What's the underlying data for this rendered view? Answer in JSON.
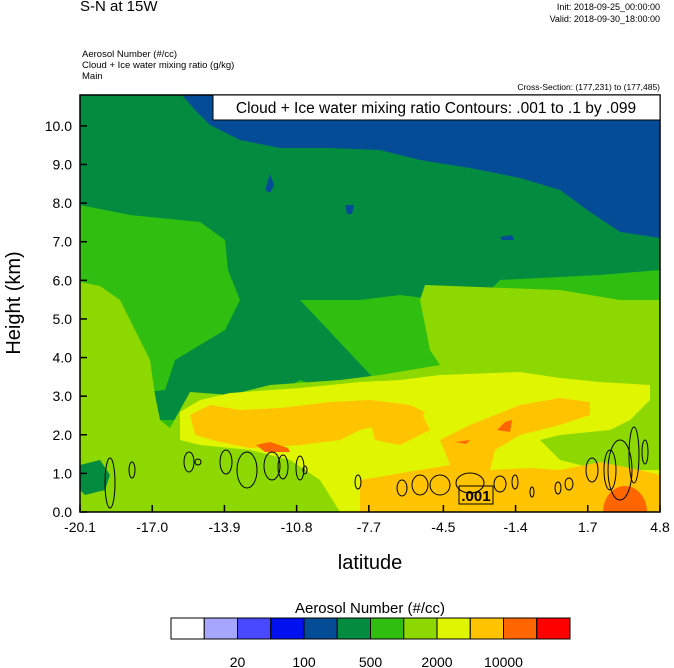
{
  "header": {
    "title": "S-N at 15W",
    "init": "Init: 2018-09-25_00:00:00",
    "valid": "Valid: 2018-09-30_18:00:00",
    "subtitles": [
      "Aerosol Number   (#/cc)",
      "Cloud + Ice water mixing ratio   (g/kg)",
      "Main"
    ],
    "cross_section": "Cross-Section: (177,231) to (177,485)"
  },
  "chart_data": {
    "type": "heatmap",
    "title": "Cloud + Ice water mixing ratio Contours: .001 to .1 by .099",
    "xlabel": "latitude",
    "ylabel": "Height (km)",
    "xlim": [
      -20.1,
      4.8
    ],
    "ylim": [
      0,
      10.8
    ],
    "x_ticks": [
      -20.1,
      -17.0,
      -13.9,
      -10.8,
      -7.7,
      -4.5,
      -1.4,
      1.7,
      4.8
    ],
    "x_tick_labels": [
      "-20.1",
      "-17.0",
      "-13.9",
      "-10.8",
      "-7.7",
      "-4.5",
      "-1.4",
      "1.7",
      "4.8"
    ],
    "y_ticks": [
      0,
      1,
      2,
      3,
      4,
      5,
      6,
      7,
      8,
      9,
      10
    ],
    "y_tick_labels": [
      "0.0",
      "1.0",
      "2.0",
      "3.0",
      "4.0",
      "5.0",
      "6.0",
      "7.0",
      "8.0",
      "9.0",
      "10.0"
    ],
    "contour_label": ".001",
    "colorbar": {
      "title": "Aerosol Number  (#/cc)",
      "colors": [
        "#ffffff",
        "#a6a6ff",
        "#4848ff",
        "#0010ee",
        "#044c96",
        "#038c40",
        "#30be10",
        "#8cd800",
        "#e0f500",
        "#ffc300",
        "#ff6600",
        "#ff0000"
      ],
      "labels": [
        "20",
        "100",
        "500",
        "2000",
        "10000"
      ]
    }
  }
}
